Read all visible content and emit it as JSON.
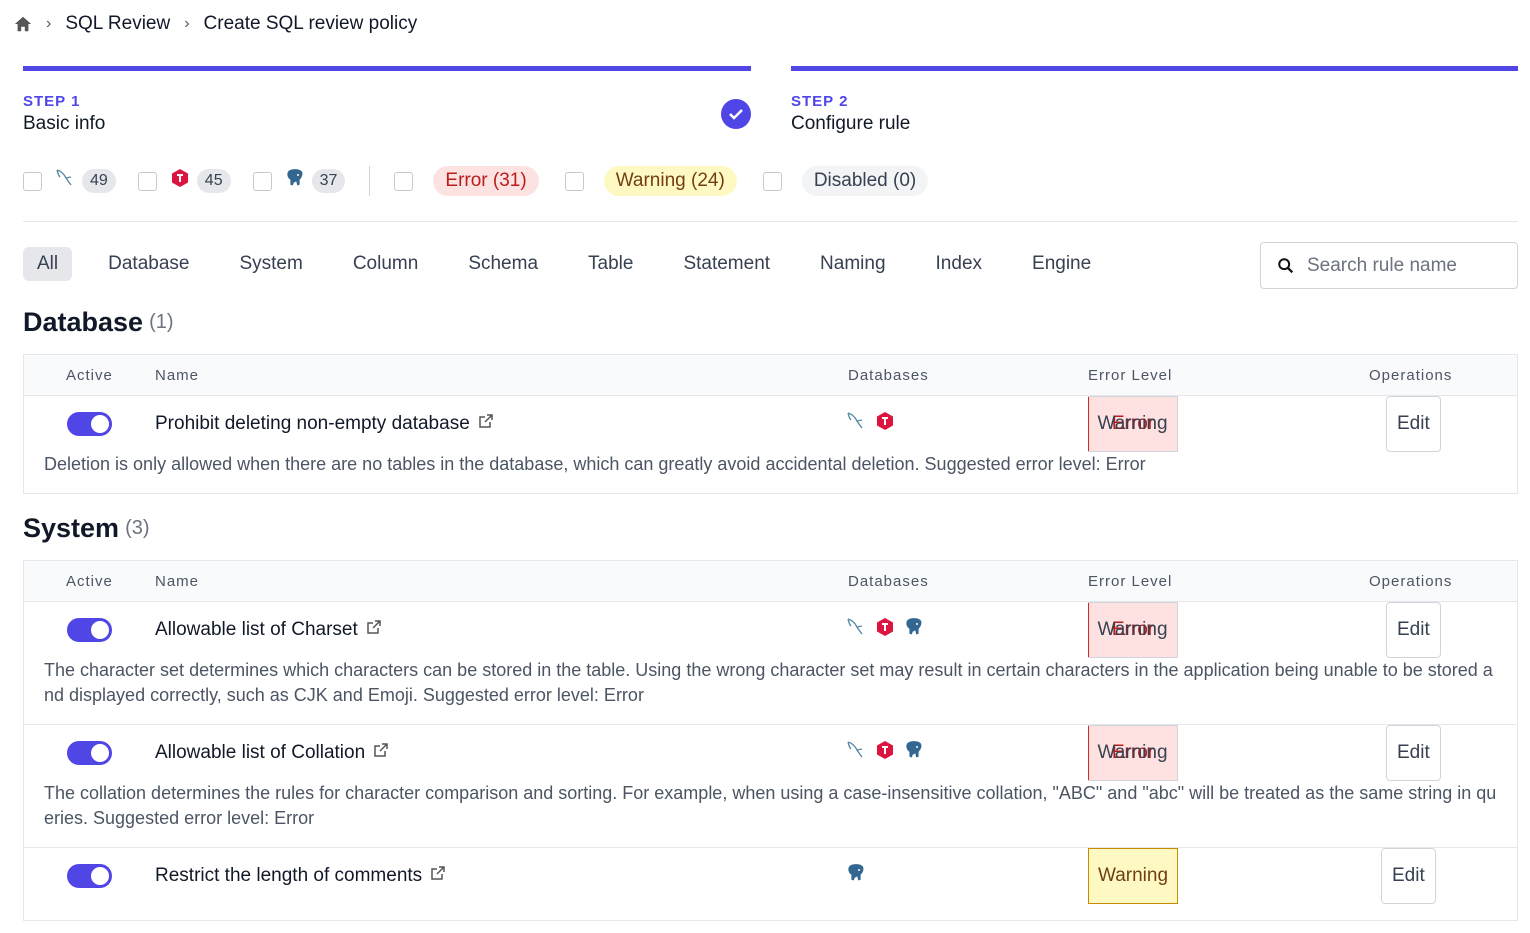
{
  "breadcrumb": [
    "SQL Review",
    "Create SQL review policy"
  ],
  "steps": [
    {
      "label": "STEP 1",
      "title": "Basic info",
      "done": true
    },
    {
      "label": "STEP 2",
      "title": "Configure rule",
      "done": false
    }
  ],
  "engine_filters": [
    {
      "engine": "mysql",
      "count": 49
    },
    {
      "engine": "tidb",
      "count": 45
    },
    {
      "engine": "postgres",
      "count": 37
    }
  ],
  "level_filters": [
    {
      "level": "error",
      "label": "Error (31)"
    },
    {
      "level": "warning",
      "label": "Warning (24)"
    },
    {
      "level": "disabled",
      "label": "Disabled (0)"
    }
  ],
  "tabs": [
    "All",
    "Database",
    "System",
    "Column",
    "Schema",
    "Table",
    "Statement",
    "Naming",
    "Index",
    "Engine"
  ],
  "search_placeholder": "Search rule name",
  "table_headers": [
    "Active",
    "Name",
    "Databases",
    "Error Level",
    "Operations"
  ],
  "level_buttons": [
    "Error",
    "Warning"
  ],
  "edit_label": "Edit",
  "sections": [
    {
      "title": "Database",
      "count": "(1)",
      "rules": [
        {
          "name": "Prohibit deleting non-empty database",
          "engines": [
            "mysql",
            "tidb"
          ],
          "level": 0,
          "description": "Deletion is only allowed when there are no tables in the database, which can greatly avoid accidental deletion. Suggested error level: Error"
        }
      ]
    },
    {
      "title": "System",
      "count": "(3)",
      "rules": [
        {
          "name": "Allowable list of Charset",
          "engines": [
            "mysql",
            "tidb",
            "postgres"
          ],
          "level": 0,
          "description": "The character set determines which characters can be stored in the table. Using the wrong character set may result in certain characters in the application being unable to be stored and displayed correctly, such as CJK and Emoji. Suggested error level: Error"
        },
        {
          "name": "Allowable list of Collation",
          "engines": [
            "mysql",
            "tidb",
            "postgres"
          ],
          "level": 0,
          "description": "The collation determines the rules for character comparison and sorting. For example, when using a case-insensitive collation, \"ABC\" and \"abc\" will be treated as the same string in queries. Suggested error level: Error"
        },
        {
          "name": "Restrict the length of comments",
          "engines": [
            "postgres"
          ],
          "level": 1,
          "description": ""
        }
      ]
    }
  ]
}
